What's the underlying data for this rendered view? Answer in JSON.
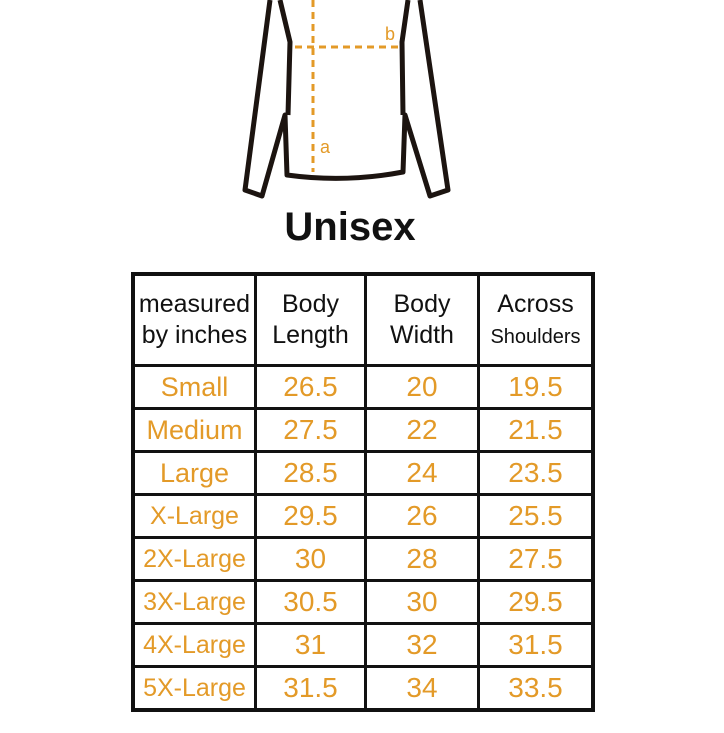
{
  "diagram": {
    "labels": [
      "a",
      "b"
    ],
    "accent": "#e39a28"
  },
  "title": "Unisex",
  "table": {
    "headers": [
      [
        "measured",
        "by inches"
      ],
      [
        "Body",
        "Length"
      ],
      [
        "Body",
        "Width"
      ],
      [
        "Across",
        "Shoulders"
      ]
    ],
    "rows": [
      [
        "Small",
        "26.5",
        "20",
        "19.5"
      ],
      [
        "Medium",
        "27.5",
        "22",
        "21.5"
      ],
      [
        "Large",
        "28.5",
        "24",
        "23.5"
      ],
      [
        "X-Large",
        "29.5",
        "26",
        "25.5"
      ],
      [
        "2X-Large",
        "30",
        "28",
        "27.5"
      ],
      [
        "3X-Large",
        "30.5",
        "30",
        "29.5"
      ],
      [
        "4X-Large",
        "31",
        "32",
        "31.5"
      ],
      [
        "5X-Large",
        "31.5",
        "34",
        "33.5"
      ]
    ]
  }
}
